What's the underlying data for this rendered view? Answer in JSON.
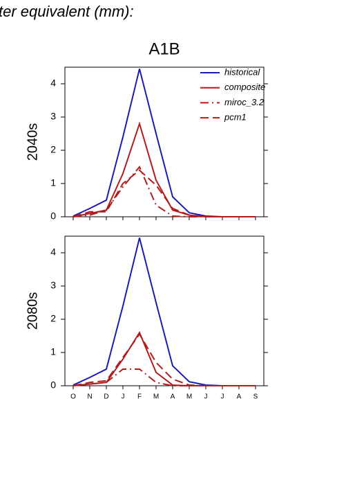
{
  "page_title": "ter equivalent (mm):",
  "chart_data": [
    {
      "type": "line",
      "title": "A1B",
      "ylabel": "2040s",
      "categories": [
        null,
        null,
        null,
        null,
        null,
        null,
        null,
        null,
        null,
        null,
        null,
        null
      ],
      "ylim": [
        0,
        4.5
      ],
      "yticks": [
        0,
        1,
        2,
        3,
        4
      ],
      "legend": "upper right",
      "series": [
        {
          "name": "historical",
          "color": "#1a1ab4",
          "dash": "solid",
          "values": [
            0.02,
            0.25,
            0.5,
            2.4,
            4.45,
            2.5,
            0.6,
            0.12,
            0.02,
            0,
            0,
            0
          ]
        },
        {
          "name": "composite",
          "color": "#b41a1a",
          "dash": "solid",
          "values": [
            0,
            0.1,
            0.2,
            1.3,
            2.8,
            1.1,
            0.2,
            0.05,
            0,
            0,
            0,
            0
          ]
        },
        {
          "name": "miroc_3.2",
          "color": "#b41a1a",
          "dash": "dashdot",
          "values": [
            0,
            0.05,
            0.2,
            0.9,
            1.5,
            0.35,
            0.02,
            0,
            0,
            0,
            0,
            0
          ]
        },
        {
          "name": "pcm1",
          "color": "#b41a1a",
          "dash": "dash",
          "values": [
            0,
            0.15,
            0.15,
            1.0,
            1.4,
            0.95,
            0.25,
            0.05,
            0,
            0,
            0,
            0
          ]
        }
      ]
    },
    {
      "type": "line",
      "ylabel": "2080s",
      "categories": [
        "O",
        "N",
        "D",
        "J",
        "F",
        "M",
        "A",
        "M",
        "J",
        "J",
        "A",
        "S"
      ],
      "ylim": [
        0,
        4.5
      ],
      "yticks": [
        0,
        1,
        2,
        3,
        4
      ],
      "series": [
        {
          "color": "#1a1ab4",
          "dash": "solid",
          "values": [
            0.02,
            0.25,
            0.5,
            2.4,
            4.45,
            2.5,
            0.6,
            0.12,
            0.02,
            0,
            0,
            0
          ]
        },
        {
          "color": "#b41a1a",
          "dash": "solid",
          "values": [
            0,
            0.05,
            0.1,
            0.8,
            1.6,
            0.4,
            0.02,
            0,
            0,
            0,
            0,
            0
          ]
        },
        {
          "color": "#b41a1a",
          "dash": "dashdot",
          "values": [
            0,
            0.05,
            0.1,
            0.5,
            0.5,
            0.1,
            0,
            0,
            0,
            0,
            0,
            0
          ]
        },
        {
          "color": "#b41a1a",
          "dash": "dash",
          "values": [
            0,
            0.1,
            0.15,
            0.85,
            1.55,
            0.7,
            0.2,
            0.02,
            0,
            0,
            0,
            0
          ]
        }
      ]
    }
  ]
}
